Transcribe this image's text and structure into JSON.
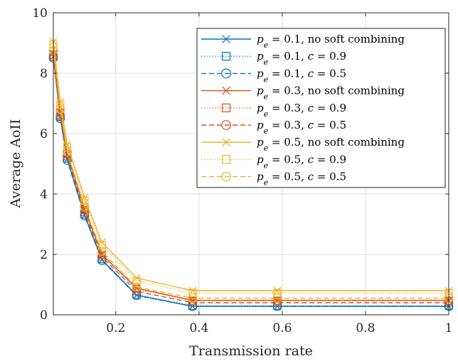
{
  "chart_data": {
    "type": "line",
    "title": "",
    "xlabel": "Transmission rate",
    "ylabel": "Average AoII",
    "xlim": [
      0.05,
      1
    ],
    "ylim": [
      0,
      10
    ],
    "xticks": [
      0.2,
      0.4,
      0.6,
      0.8,
      1
    ],
    "xtick_labels": [
      "0.2",
      "0.4",
      "0.6",
      "0.8",
      "1"
    ],
    "yticks": [
      0,
      2,
      4,
      6,
      8,
      10
    ],
    "ytick_labels": [
      "0",
      "2",
      "4",
      "6",
      "8",
      "10"
    ],
    "grid": true,
    "legend_position": "top-right",
    "x": [
      0.05,
      0.0667,
      0.0833,
      0.125,
      0.1667,
      0.25,
      0.3846,
      0.5882,
      1.0
    ],
    "series": [
      {
        "name": "pe = 0.1, no soft combining",
        "pe": "0.1",
        "detail": "no soft combining",
        "color": "#0072BD",
        "dash": "solid",
        "marker": "x",
        "values": [
          8.55,
          6.55,
          5.15,
          3.3,
          1.82,
          0.65,
          0.28,
          0.28,
          0.28
        ]
      },
      {
        "name": "pe = 0.1, c = 0.9",
        "pe": "0.1",
        "detail": "c = 0.9",
        "color": "#0072BD",
        "dash": "dotted",
        "marker": "square",
        "values": [
          8.55,
          6.55,
          5.17,
          3.32,
          1.84,
          0.67,
          0.3,
          0.3,
          0.3
        ]
      },
      {
        "name": "pe = 0.1, c = 0.5",
        "pe": "0.1",
        "detail": "c = 0.5",
        "color": "#0072BD",
        "dash": "dashed",
        "marker": "circle",
        "values": [
          8.5,
          6.5,
          5.12,
          3.28,
          1.8,
          0.64,
          0.28,
          0.28,
          0.28
        ]
      },
      {
        "name": "pe = 0.3, no soft combining",
        "pe": "0.3",
        "detail": "no soft combining",
        "color": "#D95319",
        "dash": "solid",
        "marker": "x",
        "values": [
          8.65,
          6.7,
          5.35,
          3.5,
          2.0,
          0.88,
          0.48,
          0.48,
          0.48
        ]
      },
      {
        "name": "pe = 0.3, c = 0.9",
        "pe": "0.3",
        "detail": "c = 0.9",
        "color": "#D95319",
        "dash": "dotted",
        "marker": "square",
        "values": [
          8.62,
          6.68,
          5.32,
          3.47,
          1.98,
          0.86,
          0.46,
          0.46,
          0.46
        ]
      },
      {
        "name": "pe = 0.3, c = 0.5",
        "pe": "0.3",
        "detail": "c = 0.5",
        "color": "#D95319",
        "dash": "dashed",
        "marker": "circle",
        "values": [
          8.55,
          6.6,
          5.25,
          3.4,
          1.92,
          0.78,
          0.4,
          0.4,
          0.4
        ]
      },
      {
        "name": "pe = 0.5, no soft combining",
        "pe": "0.5",
        "detail": "no soft combining",
        "color": "#EDB120",
        "dash": "solid",
        "marker": "x",
        "values": [
          9.05,
          7.05,
          5.65,
          3.88,
          2.4,
          1.22,
          0.8,
          0.8,
          0.8
        ]
      },
      {
        "name": "pe = 0.5, c = 0.9",
        "pe": "0.5",
        "detail": "c = 0.9",
        "color": "#EDB120",
        "dash": "dotted",
        "marker": "square",
        "values": [
          8.95,
          6.95,
          5.55,
          3.78,
          2.3,
          1.12,
          0.72,
          0.72,
          0.72
        ]
      },
      {
        "name": "pe = 0.5, c = 0.5",
        "pe": "0.5",
        "detail": "c = 0.5",
        "color": "#EDB120",
        "dash": "dashed",
        "marker": "circle",
        "values": [
          8.75,
          6.8,
          5.4,
          3.58,
          2.1,
          0.92,
          0.55,
          0.55,
          0.55
        ]
      }
    ]
  }
}
